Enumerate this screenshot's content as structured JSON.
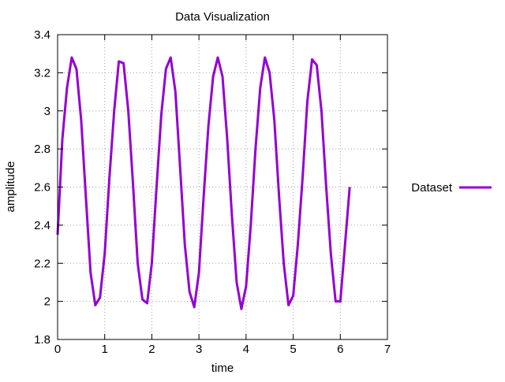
{
  "chart_data": {
    "type": "line",
    "title": "Data Visualization",
    "xlabel": "time",
    "ylabel": "amplitude",
    "xlim": [
      0,
      7
    ],
    "ylim": [
      1.8,
      3.4
    ],
    "xticks": [
      "0",
      "1",
      "2",
      "3",
      "4",
      "5",
      "6",
      "7"
    ],
    "yticks": [
      "1.8",
      "2",
      "2.2",
      "2.4",
      "2.6",
      "2.8",
      "3",
      "3.2",
      "3.4"
    ],
    "grid": true,
    "legend_position": "right",
    "series": [
      {
        "name": "Dataset",
        "color": "#9400d3",
        "x": [
          0.0,
          0.1,
          0.2,
          0.3,
          0.4,
          0.5,
          0.6,
          0.7,
          0.8,
          0.9,
          1.0,
          1.1,
          1.2,
          1.3,
          1.4,
          1.5,
          1.6,
          1.7,
          1.8,
          1.9,
          2.0,
          2.1,
          2.2,
          2.3,
          2.4,
          2.5,
          2.6,
          2.7,
          2.8,
          2.9,
          3.0,
          3.1,
          3.2,
          3.3,
          3.4,
          3.5,
          3.6,
          3.7,
          3.8,
          3.9,
          4.0,
          4.1,
          4.2,
          4.3,
          4.4,
          4.5,
          4.6,
          4.7,
          4.8,
          4.9,
          5.0,
          5.1,
          5.2,
          5.3,
          5.4,
          5.5,
          5.6,
          5.7,
          5.8,
          5.9,
          6.0,
          6.1,
          6.2
        ],
        "y": [
          2.35,
          2.85,
          3.12,
          3.28,
          3.22,
          2.95,
          2.55,
          2.15,
          1.98,
          2.02,
          2.25,
          2.65,
          3.0,
          3.26,
          3.25,
          3.0,
          2.62,
          2.2,
          2.01,
          1.99,
          2.2,
          2.6,
          2.98,
          3.22,
          3.28,
          3.1,
          2.7,
          2.3,
          2.05,
          1.97,
          2.15,
          2.55,
          2.92,
          3.18,
          3.28,
          3.18,
          2.85,
          2.45,
          2.1,
          1.96,
          2.08,
          2.4,
          2.8,
          3.12,
          3.28,
          3.2,
          2.95,
          2.55,
          2.2,
          1.98,
          2.03,
          2.3,
          2.65,
          3.05,
          3.27,
          3.24,
          3.0,
          2.6,
          2.25,
          2.0,
          2.0,
          2.3,
          2.6
        ]
      }
    ]
  }
}
